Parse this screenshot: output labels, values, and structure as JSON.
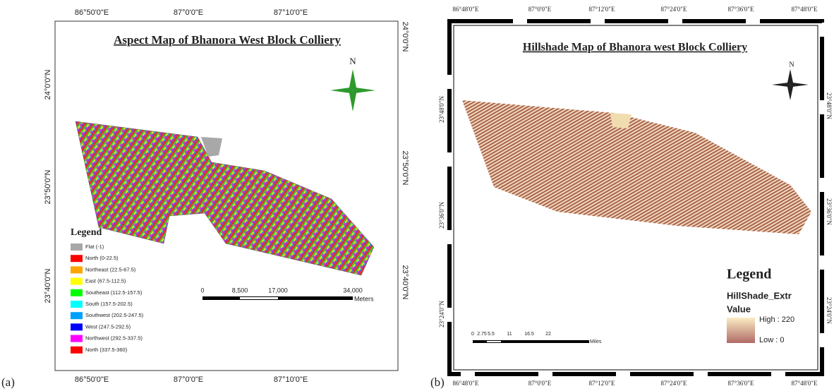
{
  "panel_a": {
    "caption": "(a)",
    "title": "Aspect Map of Bhanora West Block Colliery",
    "top_labels": [
      "86°50'0\"E",
      "87°0'0\"E",
      "87°10'0\"E"
    ],
    "bottom_labels": [
      "86°50'0\"E",
      "87°0'0\"E",
      "87°10'0\"E"
    ],
    "left_labels": [
      "24°0'0\"N",
      "23°50'0\"N",
      "23°40'0\"N"
    ],
    "right_labels": [
      "24°0'0\"N",
      "23°50'0\"N",
      "23°40'0\"N"
    ],
    "north": "N",
    "legend": {
      "title": "Legend",
      "items": [
        {
          "label": "Flat (-1)",
          "color": "#a8a8a8"
        },
        {
          "label": "North (0-22.5)",
          "color": "#ff0000"
        },
        {
          "label": "Northeast (22.5-67.5)",
          "color": "#ffa500"
        },
        {
          "label": "East (67.5-112.5)",
          "color": "#ffff00"
        },
        {
          "label": "Southeast (112.5-157.5)",
          "color": "#00ff00"
        },
        {
          "label": "South (157.5-202.5)",
          "color": "#00ffff"
        },
        {
          "label": "Southwest (202.5-247.5)",
          "color": "#00a0ff"
        },
        {
          "label": "West (247.5-292.5)",
          "color": "#0000ff"
        },
        {
          "label": "Northwest (292.5-337.5)",
          "color": "#ff00ff"
        },
        {
          "label": "North (337.5-360)",
          "color": "#ff0000"
        }
      ]
    },
    "scale": {
      "labels": [
        "0",
        "8,500",
        "17,000",
        "34,000"
      ],
      "unit": "Meters"
    }
  },
  "panel_b": {
    "caption": "(b)",
    "title": "Hillshade Map of Bhanora west Block Colliery",
    "top_labels": [
      "86°48'0\"E",
      "87°0'0\"E",
      "87°12'0\"E",
      "87°24'0\"E",
      "87°36'0\"E",
      "87°48'0\"E"
    ],
    "bottom_labels": [
      "86°48'0\"E",
      "87°0'0\"E",
      "87°12'0\"E",
      "87°24'0\"E",
      "87°36'0\"E",
      "87°48'0\"E"
    ],
    "left_labels": [
      "23°48'0\"N",
      "23°36'0\"N",
      "23°24'0\"N"
    ],
    "right_labels": [
      "23°48'0\"N",
      "23°36'0\"N",
      "23°24'0\"N"
    ],
    "north": "N",
    "legend": {
      "title": "Legend",
      "layer": "HillShade_Extr",
      "field": "Value",
      "high": "High : 220",
      "low": "Low : 0"
    },
    "scale": {
      "labels": [
        "0",
        "2.75",
        "5.5",
        "11",
        "16.5",
        "22"
      ],
      "unit": "Miles"
    }
  }
}
